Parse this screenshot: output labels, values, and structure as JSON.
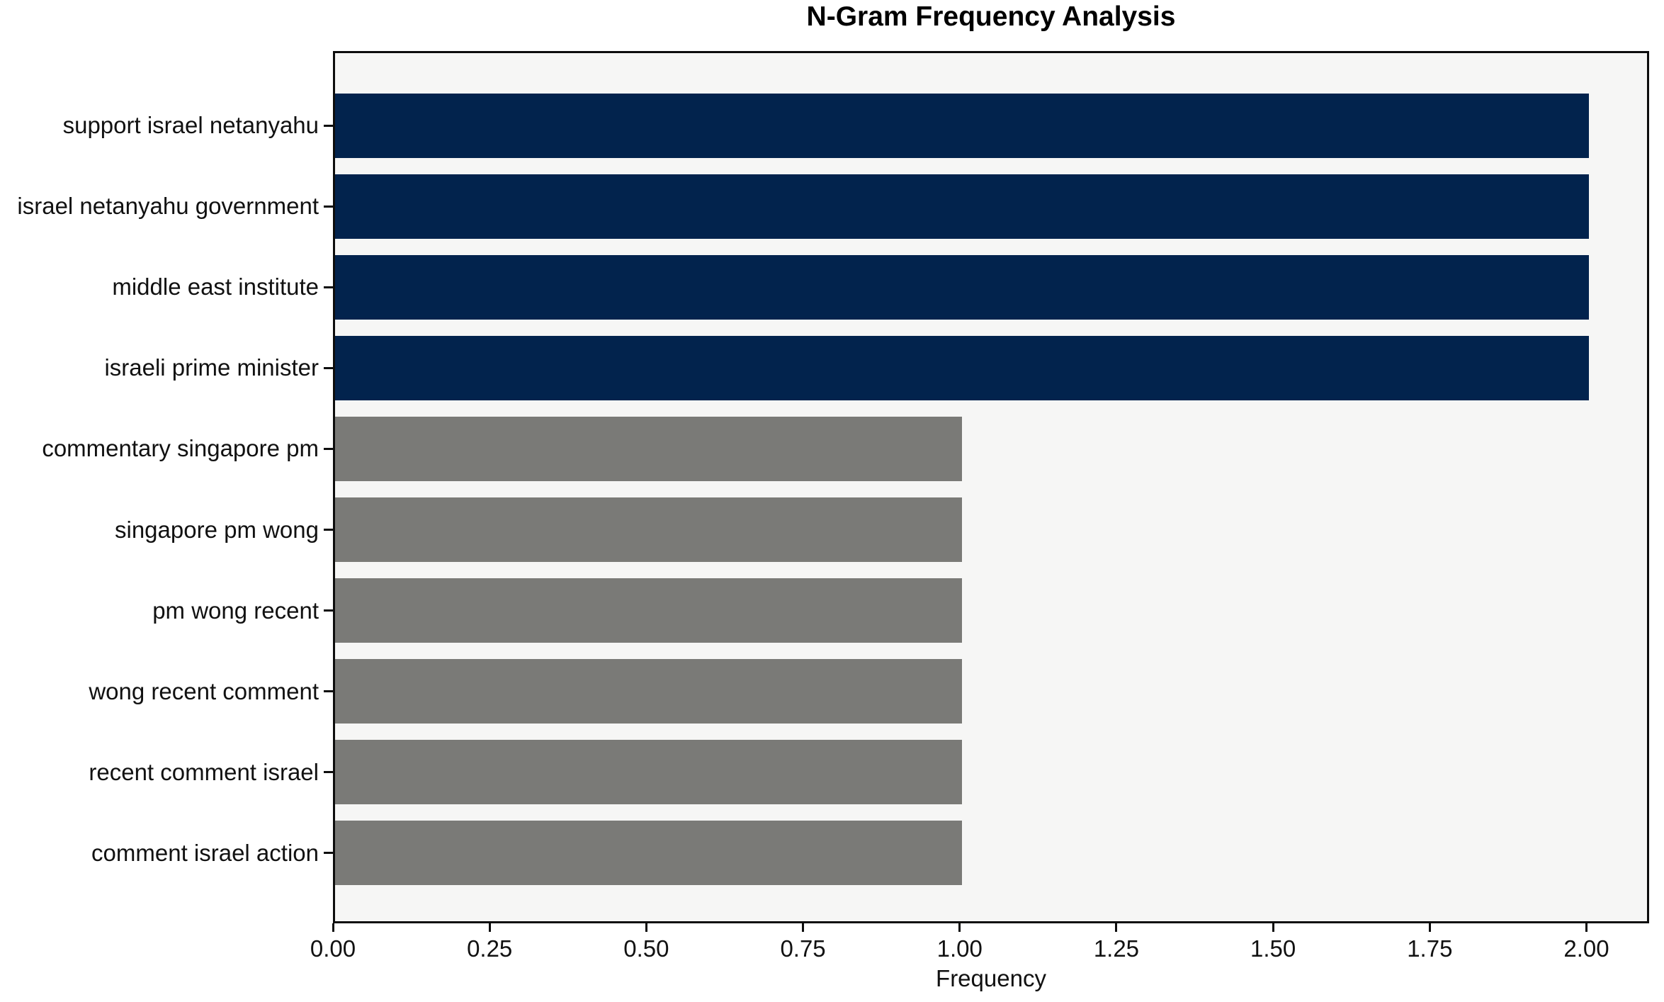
{
  "figure": {
    "title": "N-Gram Frequency Analysis"
  },
  "chart_data": {
    "type": "bar",
    "orientation": "horizontal",
    "title": "N-Gram Frequency Analysis",
    "xlabel": "Frequency",
    "ylabel": "",
    "categories": [
      "support israel netanyahu",
      "israel netanyahu government",
      "middle east institute",
      "israeli prime minister",
      "commentary singapore pm",
      "singapore pm wong",
      "pm wong recent",
      "wong recent comment",
      "recent comment israel",
      "comment israel action"
    ],
    "values": [
      2,
      2,
      2,
      2,
      1,
      1,
      1,
      1,
      1,
      1
    ],
    "bar_colors": [
      "#02234D",
      "#02234D",
      "#02234D",
      "#02234D",
      "#7A7A77",
      "#7A7A77",
      "#7A7A77",
      "#7A7A77",
      "#7A7A77",
      "#7A7A77"
    ],
    "xlim": [
      0,
      2.1
    ],
    "xticks": [
      0.0,
      0.25,
      0.5,
      0.75,
      1.0,
      1.25,
      1.5,
      1.75,
      2.0
    ],
    "xtick_labels": [
      "0.00",
      "0.25",
      "0.50",
      "0.75",
      "1.00",
      "1.25",
      "1.50",
      "1.75",
      "2.00"
    ],
    "grid": false,
    "legend": null,
    "colors": {
      "plot_background": "#F6F6F5",
      "figure_background": "#FFFFFF",
      "spine": "#0d0d0d",
      "navy_accent": "#02234D",
      "gray_accent": "#7A7A77"
    }
  }
}
